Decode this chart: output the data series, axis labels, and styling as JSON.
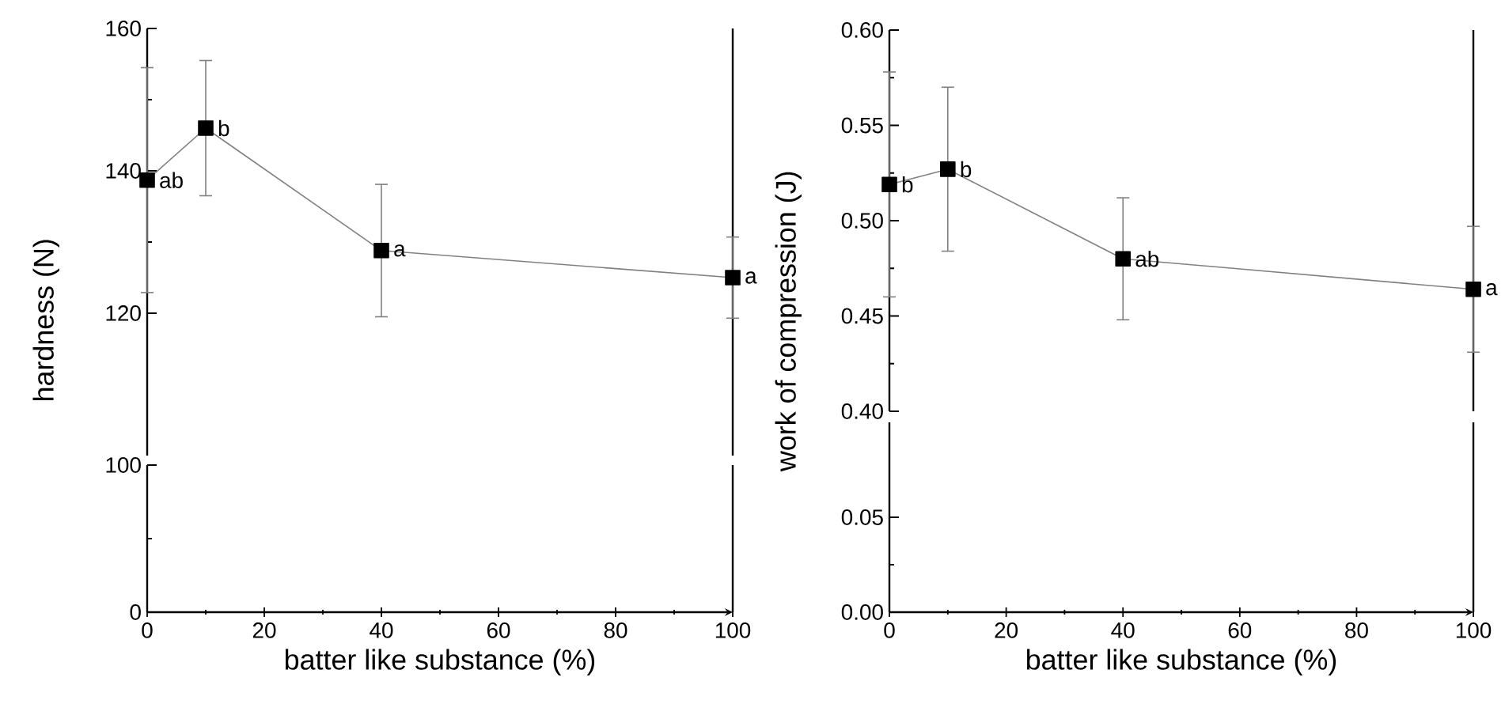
{
  "chart_data": [
    {
      "type": "line",
      "xlim": [
        0,
        100
      ],
      "ylim": [
        100,
        160
      ],
      "yticks": [
        120,
        140,
        160
      ],
      "ylabel": "hardness (N)",
      "tick_labels": "y",
      "marker": "square",
      "line_style": "solid",
      "series": [
        {
          "color": "#000000",
          "x": [
            0,
            10,
            40,
            100
          ],
          "values": [
            138.7,
            146.0,
            128.8,
            125.0
          ],
          "errors": [
            15.8,
            9.5,
            9.3,
            5.7
          ]
        }
      ],
      "annotations": [
        {
          "text": "ab",
          "x": 0,
          "y": 138.7
        },
        {
          "text": "b",
          "x": 10,
          "y": 146.0
        },
        {
          "text": "a",
          "x": 40,
          "y": 128.8
        },
        {
          "text": "a",
          "x": 100,
          "y": 125.0
        }
      ]
    },
    {
      "type": "line",
      "xlim": [
        0,
        100
      ],
      "xticks": [
        0,
        20,
        40,
        60,
        80,
        100
      ],
      "ylim": [
        0,
        100
      ],
      "yticks": [
        0,
        100
      ],
      "xlabel": "batter like substance (%)"
    },
    {
      "type": "line",
      "xlim": [
        0,
        100
      ],
      "ylim": [
        0.4,
        0.6
      ],
      "yticks": [
        {
          "value": 0.4,
          "label": "0.40"
        },
        {
          "value": 0.45,
          "label": "0.45"
        },
        {
          "value": 0.5,
          "label": "0.50"
        },
        {
          "value": 0.55,
          "label": "0.55"
        },
        {
          "value": 0.6,
          "label": "0.60"
        }
      ],
      "ylabel": "work of compression (J)",
      "tick_labels": "y",
      "marker": "square",
      "line_style": "solid",
      "series": [
        {
          "color": "#000000",
          "x": [
            0,
            10,
            40,
            100
          ],
          "values": [
            0.519,
            0.527,
            0.48,
            0.464
          ],
          "errors": [
            0.059,
            0.043,
            0.032,
            0.033
          ]
        }
      ],
      "annotations": [
        {
          "text": "b",
          "x": 0,
          "y": 0.519
        },
        {
          "text": "b",
          "x": 10,
          "y": 0.527
        },
        {
          "text": "ab",
          "x": 40,
          "y": 0.48
        },
        {
          "text": "a",
          "x": 100,
          "y": 0.464
        }
      ]
    },
    {
      "type": "line",
      "xlim": [
        0,
        100
      ],
      "xticks": [
        0,
        20,
        40,
        60,
        80,
        100
      ],
      "ylim": [
        0,
        0.1
      ],
      "yticks": [
        {
          "value": 0,
          "label": "0.00"
        },
        {
          "value": 0.05,
          "label": "0.05"
        }
      ],
      "xlabel": "batter like substance (%)"
    }
  ]
}
